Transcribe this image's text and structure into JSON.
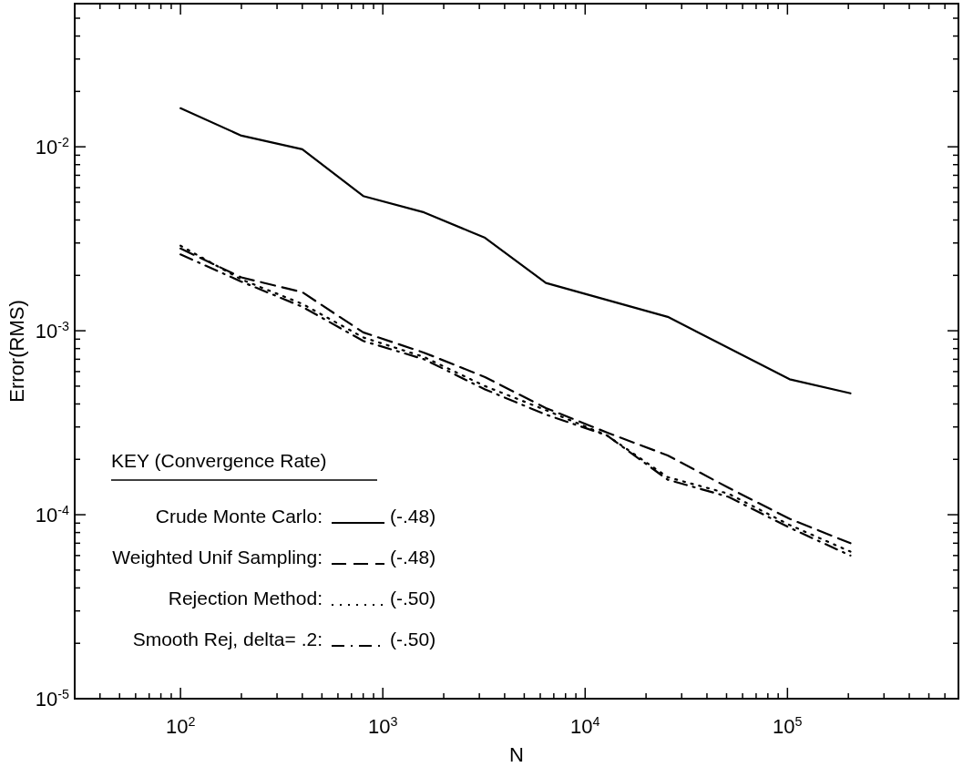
{
  "chart_data": {
    "type": "line",
    "xlabel": "N",
    "ylabel": "Error(RMS)",
    "log": "xy",
    "grid": false,
    "legend": "bottom left",
    "legend_title": "KEY (Convergence Rate)",
    "x": [
      100,
      200,
      400,
      800,
      1600,
      3200,
      6400,
      12800,
      25600,
      51200,
      102400,
      204800
    ],
    "xlim": [
      30,
      700000
    ],
    "ylim": [
      1e-05,
      0.06
    ],
    "xticks": [
      {
        "value": 30,
        "label": null
      },
      {
        "value": 40,
        "label": null
      },
      {
        "value": 50,
        "label": null
      },
      {
        "value": 60,
        "label": null
      },
      {
        "value": 70,
        "label": null
      },
      {
        "value": 80,
        "label": null
      },
      {
        "value": 90,
        "label": null
      },
      {
        "value": 100,
        "label": "10$^{2}$"
      },
      {
        "value": 200,
        "label": null
      },
      {
        "value": 300,
        "label": null
      },
      {
        "value": 400,
        "label": null
      },
      {
        "value": 500,
        "label": null
      },
      {
        "value": 600,
        "label": null
      },
      {
        "value": 700,
        "label": null
      },
      {
        "value": 800,
        "label": null
      },
      {
        "value": 900,
        "label": null
      },
      {
        "value": 1000,
        "label": "10$^{3}$"
      },
      {
        "value": 2000,
        "label": null
      },
      {
        "value": 3000,
        "label": null
      },
      {
        "value": 4000,
        "label": null
      },
      {
        "value": 5000,
        "label": null
      },
      {
        "value": 6000,
        "label": null
      },
      {
        "value": 7000,
        "label": null
      },
      {
        "value": 8000,
        "label": null
      },
      {
        "value": 9000,
        "label": null
      },
      {
        "value": 10000,
        "label": "10$^{4}$"
      },
      {
        "value": 20000,
        "label": null
      },
      {
        "value": 30000,
        "label": null
      },
      {
        "value": 40000,
        "label": null
      },
      {
        "value": 50000,
        "label": null
      },
      {
        "value": 60000,
        "label": null
      },
      {
        "value": 70000,
        "label": null
      },
      {
        "value": 80000,
        "label": null
      },
      {
        "value": 90000,
        "label": null
      },
      {
        "value": 100000,
        "label": "10$^{5}$"
      },
      {
        "value": 200000,
        "label": null
      },
      {
        "value": 300000,
        "label": null
      },
      {
        "value": 400000,
        "label": null
      },
      {
        "value": 500000,
        "label": null
      },
      {
        "value": 600000,
        "label": null
      },
      {
        "value": 700000,
        "label": null
      }
    ],
    "yticks": [
      {
        "value": 1e-05,
        "label": "10$^{-5}$"
      },
      {
        "value": 2e-05,
        "label": null
      },
      {
        "value": 3e-05,
        "label": null
      },
      {
        "value": 4e-05,
        "label": null
      },
      {
        "value": 5e-05,
        "label": null
      },
      {
        "value": 6e-05,
        "label": null
      },
      {
        "value": 7e-05,
        "label": null
      },
      {
        "value": 8e-05,
        "label": null
      },
      {
        "value": 9e-05,
        "label": null
      },
      {
        "value": 0.0001,
        "label": "10$^{-4}$"
      },
      {
        "value": 0.0002,
        "label": null
      },
      {
        "value": 0.0003,
        "label": null
      },
      {
        "value": 0.0004,
        "label": null
      },
      {
        "value": 0.0005,
        "label": null
      },
      {
        "value": 0.0006,
        "label": null
      },
      {
        "value": 0.0007,
        "label": null
      },
      {
        "value": 0.0008,
        "label": null
      },
      {
        "value": 0.0009,
        "label": null
      },
      {
        "value": 0.001,
        "label": "10$^{-3}$"
      },
      {
        "value": 0.002,
        "label": null
      },
      {
        "value": 0.003,
        "label": null
      },
      {
        "value": 0.004,
        "label": null
      },
      {
        "value": 0.005,
        "label": null
      },
      {
        "value": 0.006,
        "label": null
      },
      {
        "value": 0.007,
        "label": null
      },
      {
        "value": 0.008,
        "label": null
      },
      {
        "value": 0.009,
        "label": null
      },
      {
        "value": 0.01,
        "label": "10$^{-2}$"
      },
      {
        "value": 0.02,
        "label": null
      },
      {
        "value": 0.03,
        "label": null
      },
      {
        "value": 0.04,
        "label": null
      },
      {
        "value": 0.05,
        "label": null
      },
      {
        "value": 0.06,
        "label": null
      }
    ],
    "annotations": [
      "(-.48)",
      "(-.48)",
      "(-.50)",
      "(-.50)"
    ],
    "series": [
      {
        "name": "Crude Monte Carlo:",
        "color": "#000000",
        "line_style": "solid",
        "values": [
          0.0162,
          0.0115,
          0.0097,
          0.0054,
          0.0044,
          0.0032,
          0.00182,
          null,
          0.00119,
          null,
          0.000545,
          0.000457
        ]
      },
      {
        "name": "Weighted Unif Sampling:",
        "color": "#000000",
        "line_style": "dashed",
        "values": [
          0.0028,
          0.00195,
          0.00162,
          0.00098,
          0.00076,
          0.00056,
          0.00038,
          0.00028,
          0.00021,
          0.00014,
          9.5e-05,
          7e-05
        ]
      },
      {
        "name": "Rejection Method:",
        "color": "#000000",
        "line_style": "dotted",
        "values": [
          0.0029,
          0.0019,
          0.0014,
          0.00092,
          0.00072,
          0.0005,
          0.00037,
          0.00027,
          0.00016,
          0.00013,
          8.8e-05,
          6.3e-05
        ]
      },
      {
        "name": "Smooth Rej, delta= .2:",
        "color": "#000000",
        "line_style": "dashdot",
        "values": [
          0.0026,
          0.00185,
          0.00135,
          0.00088,
          0.0007,
          0.00048,
          0.00035,
          0.00027,
          0.000155,
          0.000125,
          8.5e-05,
          6e-05
        ]
      }
    ]
  }
}
